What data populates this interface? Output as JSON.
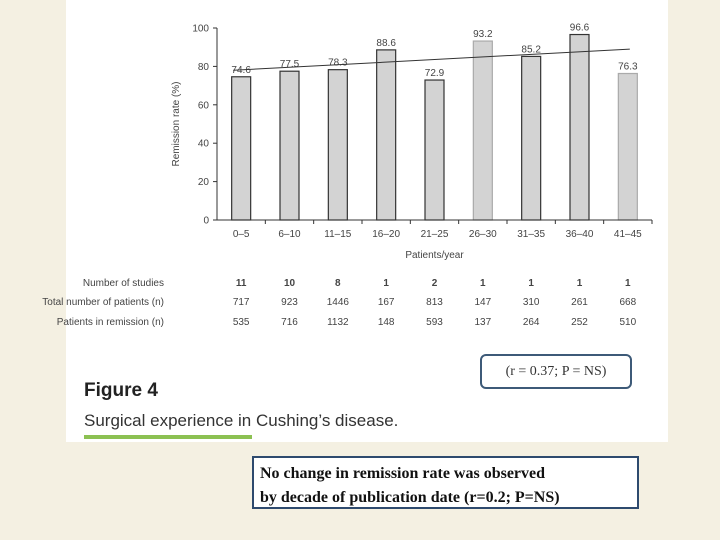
{
  "chart_data": {
    "type": "bar",
    "title": "",
    "xlabel": "Patients/year",
    "ylabel": "Remission rate (%)",
    "ylim": [
      0,
      100
    ],
    "yticks": [
      0,
      20,
      40,
      60,
      80,
      100
    ],
    "categories": [
      "0–5",
      "6–10",
      "11–15",
      "16–20",
      "21–25",
      "26–30",
      "31–35",
      "36–40",
      "41–45"
    ],
    "values": [
      74.6,
      77.5,
      78.3,
      88.6,
      72.9,
      93.2,
      85.2,
      96.6,
      76.3
    ],
    "value_labels": [
      "74.6",
      "77.5",
      "78.3",
      "88.6",
      "72.9",
      "93.2",
      "85.2",
      "96.6",
      "76.3"
    ],
    "trendline": {
      "start": 78,
      "end": 89
    },
    "grid": false,
    "bar_color": "#d3d3d3"
  },
  "table": {
    "rows": [
      {
        "label": "Number of studies",
        "values": [
          "11",
          "10",
          "8",
          "1",
          "2",
          "1",
          "1",
          "1",
          "1"
        ]
      },
      {
        "label": "Total number of patients (n)",
        "values": [
          "717",
          "923",
          "1446",
          "167",
          "813",
          "147",
          "310",
          "261",
          "668"
        ]
      },
      {
        "label": "Patients in remission (n)",
        "values": [
          "535",
          "716",
          "1132",
          "148",
          "593",
          "137",
          "264",
          "252",
          "510"
        ]
      }
    ]
  },
  "stat_box": "(r = 0.37;  P = NS)",
  "figure": {
    "title": "Figure 4",
    "caption": "Surgical experience in Cushing’s disease."
  },
  "note": {
    "line1": "No change in remission rate was observed",
    "line2": "by decade of publication date (r=0.2; P=NS)"
  }
}
